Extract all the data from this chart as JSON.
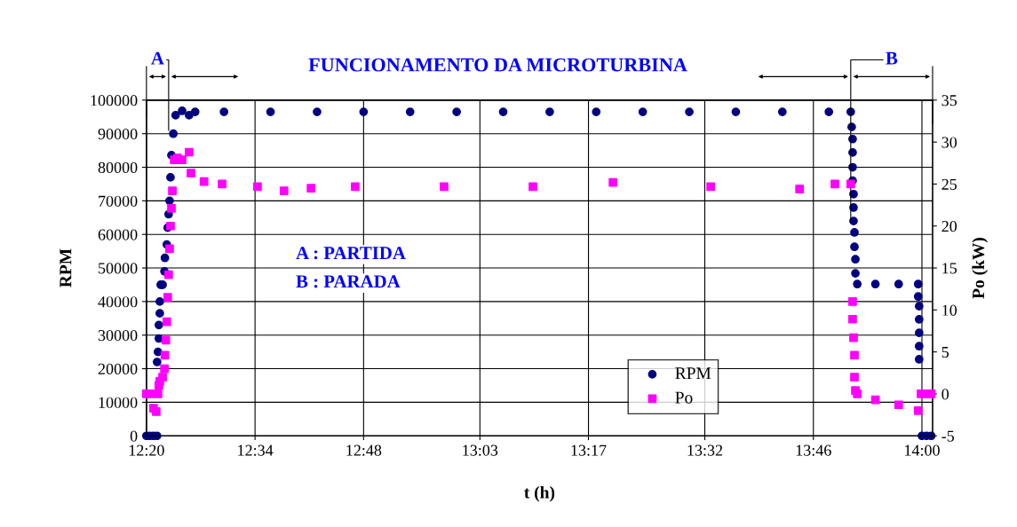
{
  "chart_data": {
    "type": "scatter",
    "title": "FUNCIONAMENTO DA MICROTURBINA",
    "xlabel": "t (h)",
    "ylabel": "RPM",
    "y2label": "Po (kW)",
    "annotations": [
      {
        "text": "A",
        "x": 12.381,
        "y": 91000
      },
      {
        "text": "B",
        "x": 13.847,
        "y": 64000
      },
      "A : PARTIDA",
      "B : PARADA"
    ],
    "xlim": [
      12.3333,
      14.0229
    ],
    "xticks": [
      {
        "value": 12.3333,
        "label": "12:20"
      },
      {
        "value": 12.5667,
        "label": "12:34"
      },
      {
        "value": 12.8,
        "label": "12:48"
      },
      {
        "value": 13.05,
        "label": "13:03"
      },
      {
        "value": 13.2833,
        "label": "13:17"
      },
      {
        "value": 13.5333,
        "label": "13:32"
      },
      {
        "value": 13.7667,
        "label": "13:46"
      },
      {
        "value": 14.0,
        "label": "14:00"
      }
    ],
    "ylim": [
      0,
      100000
    ],
    "yticks": [
      0,
      10000,
      20000,
      30000,
      40000,
      50000,
      60000,
      70000,
      80000,
      90000,
      100000
    ],
    "y2lim": [
      -5,
      35
    ],
    "y2ticks": [
      -5,
      0,
      5,
      10,
      15,
      20,
      25,
      30,
      35
    ],
    "grid": true,
    "legend": "bottom",
    "series": [
      {
        "name": "RPM",
        "color": "#000080",
        "marker": "circle",
        "x": [
          12.3333,
          12.34,
          12.348,
          12.356,
          12.3562,
          12.3581,
          12.36,
          12.36,
          12.362,
          12.362,
          12.364,
          12.368,
          12.372,
          12.373,
          12.377,
          12.379,
          12.381,
          12.383,
          12.385,
          12.387,
          12.391,
          12.396,
          12.41,
          12.425,
          12.438,
          12.5,
          12.6,
          12.7,
          12.8,
          12.9,
          13.0,
          13.1,
          13.2,
          13.3,
          13.4,
          13.5,
          13.6,
          13.7,
          13.8,
          13.847,
          13.849,
          13.851,
          13.851,
          13.851,
          13.851,
          13.853,
          13.853,
          13.853,
          13.855,
          13.855,
          13.857,
          13.857,
          13.861,
          13.9,
          13.95,
          13.992,
          13.992,
          13.994,
          13.994,
          13.994,
          13.994,
          13.994,
          14.0,
          14.01,
          14.02
        ],
        "values": [
          0,
          0,
          0,
          0,
          22000,
          25000,
          29000,
          33000,
          36500,
          40000,
          45000,
          45000,
          49000,
          53000,
          57000,
          62000,
          66000,
          70000,
          77000,
          83600,
          90000,
          95500,
          96800,
          95500,
          96500,
          96500,
          96500,
          96500,
          96500,
          96500,
          96500,
          96500,
          96500,
          96500,
          96500,
          96500,
          96500,
          96500,
          96500,
          96500,
          92000,
          88400,
          84400,
          80000,
          76000,
          72000,
          68000,
          64000,
          60600,
          56300,
          52600,
          48400,
          45200,
          45200,
          45200,
          45200,
          41500,
          38600,
          34700,
          30700,
          26700,
          22800,
          0,
          0,
          0
        ]
      },
      {
        "name": "Po",
        "color": "#ff00ff",
        "marker": "square",
        "axis": "y2",
        "x": [
          12.3333,
          12.34,
          12.3486,
          12.3543,
          12.3581,
          12.36,
          12.362,
          12.368,
          12.372,
          12.373,
          12.375,
          12.377,
          12.379,
          12.381,
          12.383,
          12.385,
          12.387,
          12.389,
          12.393,
          12.4,
          12.41,
          12.425,
          12.429,
          12.457,
          12.496,
          12.572,
          12.629,
          12.687,
          12.782,
          12.973,
          13.164,
          13.336,
          13.546,
          13.737,
          13.813,
          13.847,
          13.851,
          13.851,
          13.853,
          13.855,
          13.855,
          13.857,
          13.861,
          13.9,
          13.95,
          13.992,
          13.998,
          14.01,
          14.02
        ],
        "values": [
          0,
          0,
          -1.7,
          -2.1,
          0,
          1,
          1.5,
          2,
          3,
          4.6,
          6.4,
          8.6,
          11.5,
          14.2,
          17.3,
          20,
          22.1,
          24.2,
          27.9,
          28.1,
          27.9,
          28.8,
          26.3,
          25.3,
          25,
          24.7,
          24.2,
          24.5,
          24.7,
          24.7,
          24.7,
          25.2,
          24.7,
          24.4,
          25,
          25,
          11,
          8.9,
          6.7,
          4.6,
          2,
          0.4,
          0,
          -0.7,
          -1.3,
          -2,
          0,
          0,
          0
        ]
      }
    ]
  }
}
